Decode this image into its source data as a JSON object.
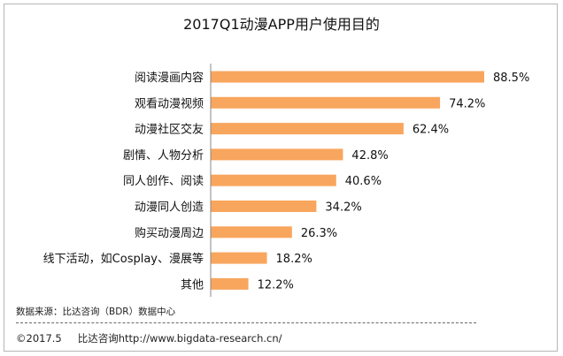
{
  "chart_data": {
    "type": "bar",
    "orientation": "horizontal",
    "title": "2017Q1动漫APP用户使用目的",
    "categories": [
      "阅读漫画内容",
      "观看动漫视频",
      "动漫社区交友",
      "剧情、人物分析",
      "同人创作、阅读",
      "动漫同人创造",
      "购买动漫周边",
      "线下活动，如Cosplay、漫展等",
      "其他"
    ],
    "values": [
      88.5,
      74.2,
      62.4,
      42.8,
      40.6,
      34.2,
      26.3,
      18.2,
      12.2
    ],
    "value_labels": [
      "88.5%",
      "74.2%",
      "62.4%",
      "42.8%",
      "40.6%",
      "34.2%",
      "26.3%",
      "18.2%",
      "12.2%"
    ],
    "unit": "%",
    "xlim": [
      0,
      100
    ],
    "grid": false,
    "bar_color": "#f8a65e"
  },
  "footer": {
    "source": "数据来源：比达咨询（BDR）数据中心",
    "copyright": "©2017.5",
    "site": "比达咨询http://www.bigdata-research.cn/"
  }
}
